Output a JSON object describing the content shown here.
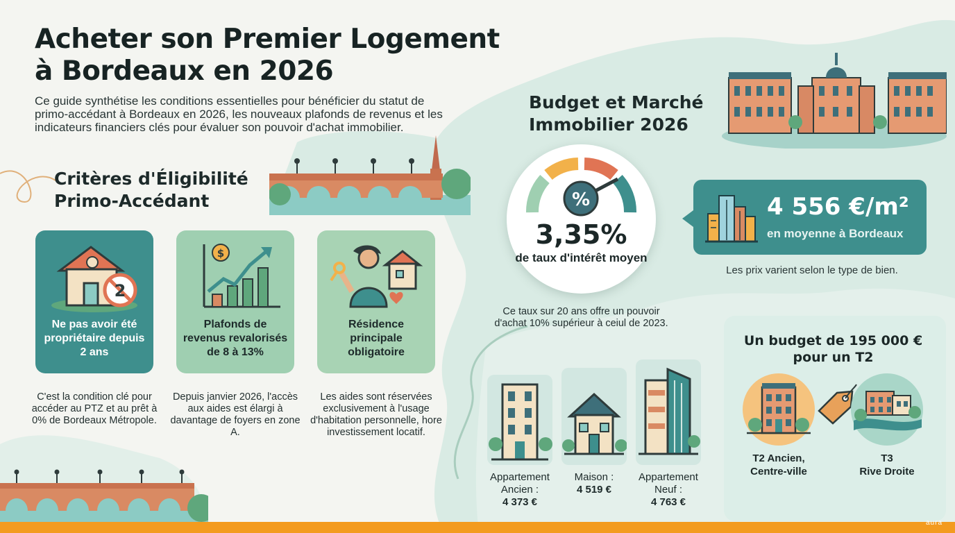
{
  "header": {
    "title_line1": "Acheter son Premier Logement",
    "title_line2": "à Bordeaux en 2026",
    "intro": "Ce guide synthétise les conditions essentielles pour bénéficier du statut de primo-accédant à Bordeaux en 2026, les nouveaux plafonds de revenus et les indicateurs financiers clés pour évaluer son pouvoir d'achat immobilier."
  },
  "eligibility": {
    "title_line1": "Critères d'Éligibilité",
    "title_line2": "Primo-Accédant",
    "cards": [
      {
        "label": "Ne pas avoir été propriétaire depuis 2 ans",
        "badge": "2",
        "icon": "house-no-ownership-icon",
        "description": "C'est la condition clé pour accéder au PTZ et au prêt à 0% de Bordeaux Métropole.",
        "color": "#3e8f8d"
      },
      {
        "label": "Plafonds de revenus revalorisés de 8 à 13%",
        "badge": "$",
        "icon": "rising-income-chart-icon",
        "description": "Depuis janvier 2026, l'accès aux aides est élargi à davantage de foyers en zone A.",
        "color": "#9fcfb1"
      },
      {
        "label": "Résidence principale obligatoire",
        "icon": "person-with-key-and-house-icon",
        "description": "Les aides sont réservées exclusivement à l'usage d'habitation personnelle, hore investissement locatif.",
        "color": "#a8d3b4"
      }
    ]
  },
  "market": {
    "title_line1": "Budget et Marché",
    "title_line2": "Immobilier 2026",
    "gauge_symbol": "%",
    "rate_value": "3,35%",
    "rate_label": "de taux d'intérêt moyen",
    "rate_description": "Ce taux sur 20 ans offre un pouvoir d'achat 10% supérieur à ceiul de 2023.",
    "price_value": "4 556 €/m²",
    "price_caption": "en moyenne à Bordeaux",
    "price_note": "Les prix varient selon le type de bien.",
    "properties": [
      {
        "type_line1": "Appartement",
        "type_line2": "Ancien :",
        "price": "4 373 €",
        "icon": "old-apartment-building-icon"
      },
      {
        "type_line1": "Maison :",
        "type_line2": "",
        "price": "4 519 €",
        "icon": "house-icon"
      },
      {
        "type_line1": "Appartement",
        "type_line2": "Neuf :",
        "price": "4 763 €",
        "icon": "new-apartment-building-icon"
      }
    ]
  },
  "budget": {
    "title_line1": "Un budget de 195 000 €",
    "title_line2": "pour un T2",
    "options": [
      {
        "line1": "T2 Ancien,",
        "line2": "Centre-ville",
        "icon": "city-center-building-icon"
      },
      {
        "line1": "T3",
        "line2": "Rive Droite",
        "icon": "riverside-buildings-icon"
      }
    ]
  },
  "footer": {
    "logo": "aura"
  },
  "colors": {
    "teal": "#3e8f8d",
    "mint": "#a8d3b4",
    "orange": "#f39b1f",
    "brick": "#d9805a"
  }
}
